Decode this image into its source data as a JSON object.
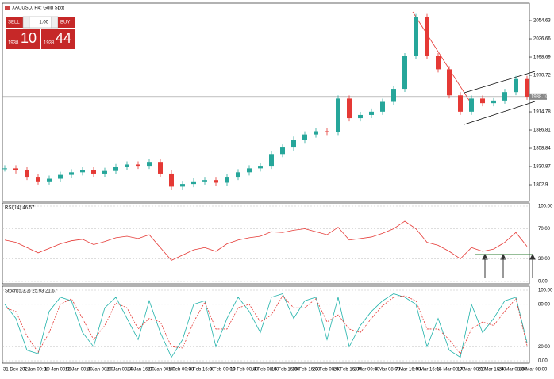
{
  "header": {
    "title": "XAUUSD, H4: Gold Spot"
  },
  "trade_panel": {
    "sell": "SELL",
    "buy": "BUY",
    "volume": "1.00",
    "bid_main": "1938",
    "bid_big": "10",
    "ask_main": "1938",
    "ask_big": "44"
  },
  "price_pane": {
    "ylim": [
      1778.6,
      2080.2
    ],
    "yticks": [
      2054.63,
      2026.66,
      1998.69,
      1970.72,
      1914.78,
      1886.81,
      1858.84,
      1830.87,
      1802.9
    ],
    "current_price": {
      "value": 1938.1,
      "label": "1938.10"
    },
    "closes": [
      1828,
      1825,
      1815,
      1808,
      1812,
      1818,
      1822,
      1826,
      1820,
      1824,
      1830,
      1834,
      1832,
      1838,
      1820,
      1800,
      1804,
      1808,
      1810,
      1806,
      1815,
      1822,
      1828,
      1832,
      1850,
      1860,
      1872,
      1880,
      1885,
      1884,
      1935,
      1905,
      1910,
      1915,
      1930,
      1950,
      2000,
      2060,
      2000,
      1980,
      1940,
      1915,
      1935,
      1928,
      1932,
      1945,
      1965,
      1938
    ]
  },
  "rsi_pane": {
    "label": "RSI(14) 46.57",
    "ylim": [
      0,
      100
    ],
    "yticks": [
      {
        "value": 100,
        "label": "100.00"
      },
      {
        "value": 70,
        "label": "70.00"
      },
      {
        "value": 30,
        "label": "30.00"
      },
      {
        "value": 0,
        "label": "0.00"
      }
    ],
    "values": [
      55,
      52,
      45,
      38,
      44,
      50,
      54,
      56,
      49,
      53,
      58,
      60,
      57,
      62,
      45,
      28,
      35,
      42,
      45,
      40,
      50,
      55,
      58,
      60,
      66,
      65,
      68,
      70,
      66,
      62,
      72,
      55,
      57,
      59,
      64,
      70,
      80,
      70,
      52,
      48,
      40,
      30,
      45,
      40,
      43,
      52,
      65,
      46.57
    ]
  },
  "stoch_pane": {
    "label": "Stoch(5,3,3) 25.93 21.67",
    "ylim": [
      0,
      100
    ],
    "yticks": [
      {
        "value": 100,
        "label": "100.00"
      },
      {
        "value": 80,
        "label": "80.00"
      },
      {
        "value": 20,
        "label": "20.00"
      },
      {
        "value": 0,
        "label": "0.00"
      }
    ],
    "main": [
      80,
      60,
      15,
      10,
      70,
      90,
      85,
      40,
      20,
      75,
      90,
      60,
      30,
      85,
      40,
      5,
      30,
      80,
      85,
      20,
      60,
      90,
      70,
      40,
      90,
      95,
      60,
      85,
      90,
      30,
      90,
      20,
      50,
      70,
      85,
      95,
      90,
      80,
      20,
      60,
      15,
      5,
      80,
      40,
      60,
      85,
      90,
      25.93
    ],
    "signal": [
      75,
      70,
      35,
      12,
      40,
      80,
      88,
      60,
      30,
      50,
      82,
      75,
      45,
      60,
      55,
      20,
      18,
      55,
      83,
      45,
      45,
      75,
      80,
      55,
      65,
      92,
      75,
      75,
      88,
      55,
      65,
      45,
      40,
      60,
      78,
      90,
      92,
      85,
      45,
      45,
      30,
      10,
      45,
      55,
      50,
      70,
      88,
      21.67
    ]
  },
  "x_axis": {
    "labels": [
      "31 Dec 2021",
      "5 Jan 00:00",
      "10 Jan 00:00",
      "12 Jan 00:00",
      "18 Jan 00:00",
      "20 Jan 00:00",
      "24 Jan 16:00",
      "27 Jan 00:00",
      "1 Feb 00:00",
      "3 Feb 16:00",
      "8 Feb 00:00",
      "10 Feb 00:00",
      "14 Feb 08:00",
      "16 Feb 16:00",
      "18 Feb 16:00",
      "23 Feb 00:00",
      "25 Feb 16:00",
      "2 Mar 00:00",
      "4 Mar 08:00",
      "7 Mar 16:00",
      "9 Mar 16:00",
      "14 Mar 00:00",
      "17 Mar 00:00",
      "21 Mar 16:00",
      "24 Mar 08:00",
      "28 Mar 08:00"
    ]
  }
}
